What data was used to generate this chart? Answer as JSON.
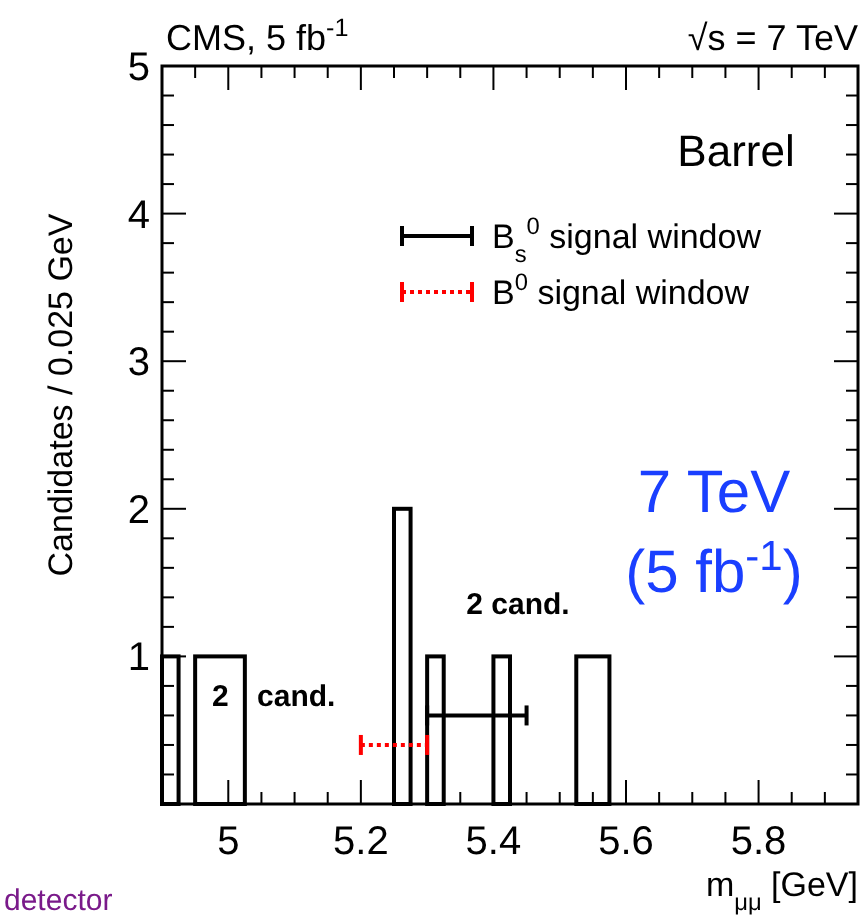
{
  "chart_data": {
    "type": "histogram",
    "title": "CMS, 5 fb$^{-1}$",
    "subtitle": "√s = 7 TeV",
    "xlabel": "m$_{μμ}$ [GeV]",
    "ylabel": "Candidates / 0.025 GeV",
    "bins": [
      4.9,
      4.925,
      4.95,
      5.025,
      5.25,
      5.275,
      5.3,
      5.325,
      5.4,
      5.425,
      5.525,
      5.575
    ],
    "values": [
      1,
      0,
      1,
      0,
      2,
      0,
      1,
      0,
      1,
      0,
      1
    ],
    "color": "#000000",
    "series": [
      {
        "type": "line",
        "name": "B$_{s}$$^{0}$ signal window",
        "color": "#000000",
        "line_style": "solid",
        "x": [
          5.3,
          5.45
        ],
        "values": [
          0.6,
          0.6
        ]
      },
      {
        "type": "line",
        "name": "B$^{0}$ signal window",
        "color": "#ff0000",
        "line_style": "dotted",
        "x": [
          5.2,
          5.3
        ],
        "values": [
          0.4,
          0.4
        ]
      }
    ],
    "annotations": [
      "2 cand.",
      "2 cand.",
      "Barrel",
      "7 TeV",
      "(5 fb$^{-1}$)",
      "detector"
    ],
    "xlim": [
      4.9,
      5.95
    ],
    "xticks": [
      {
        "value": 4.9,
        "label": null
      },
      {
        "value": 4.95,
        "label": null
      },
      {
        "value": 5,
        "label": "5"
      },
      {
        "value": 5.05,
        "label": null
      },
      {
        "value": 5.1,
        "label": null
      },
      {
        "value": 5.15,
        "label": null
      },
      {
        "value": 5.2,
        "label": "5.2"
      },
      {
        "value": 5.25,
        "label": null
      },
      {
        "value": 5.3,
        "label": null
      },
      {
        "value": 5.35,
        "label": null
      },
      {
        "value": 5.4,
        "label": "5.4"
      },
      {
        "value": 5.45,
        "label": null
      },
      {
        "value": 5.5,
        "label": null
      },
      {
        "value": 5.55,
        "label": null
      },
      {
        "value": 5.6,
        "label": "5.6"
      },
      {
        "value": 5.65,
        "label": null
      },
      {
        "value": 5.7,
        "label": null
      },
      {
        "value": 5.75,
        "label": null
      },
      {
        "value": 5.8,
        "label": "5.8"
      },
      {
        "value": 5.85,
        "label": null
      },
      {
        "value": 5.9,
        "label": null
      }
    ],
    "ylim": [
      0,
      5
    ],
    "yticks": [
      {
        "value": 0,
        "label": null
      },
      {
        "value": 0.2,
        "label": null
      },
      {
        "value": 0.4,
        "label": null
      },
      {
        "value": 0.6,
        "label": null
      },
      {
        "value": 0.8,
        "label": null
      },
      1,
      {
        "value": 1.2,
        "label": null
      },
      {
        "value": 1.4,
        "label": null
      },
      {
        "value": 1.6,
        "label": null
      },
      {
        "value": 1.8,
        "label": null
      },
      2,
      {
        "value": 2.2,
        "label": null
      },
      {
        "value": 2.4,
        "label": null
      },
      {
        "value": 2.6,
        "label": null
      },
      {
        "value": 2.8,
        "label": null
      },
      3,
      {
        "value": 3.2,
        "label": null
      },
      {
        "value": 3.4,
        "label": null
      },
      {
        "value": 3.6,
        "label": null
      },
      {
        "value": 3.8,
        "label": null
      },
      4,
      {
        "value": 4.2,
        "label": null
      },
      {
        "value": 4.4,
        "label": null
      },
      {
        "value": 4.6,
        "label": null
      },
      {
        "value": 4.8,
        "label": null
      },
      5
    ],
    "grid": false,
    "legend": "top right"
  }
}
